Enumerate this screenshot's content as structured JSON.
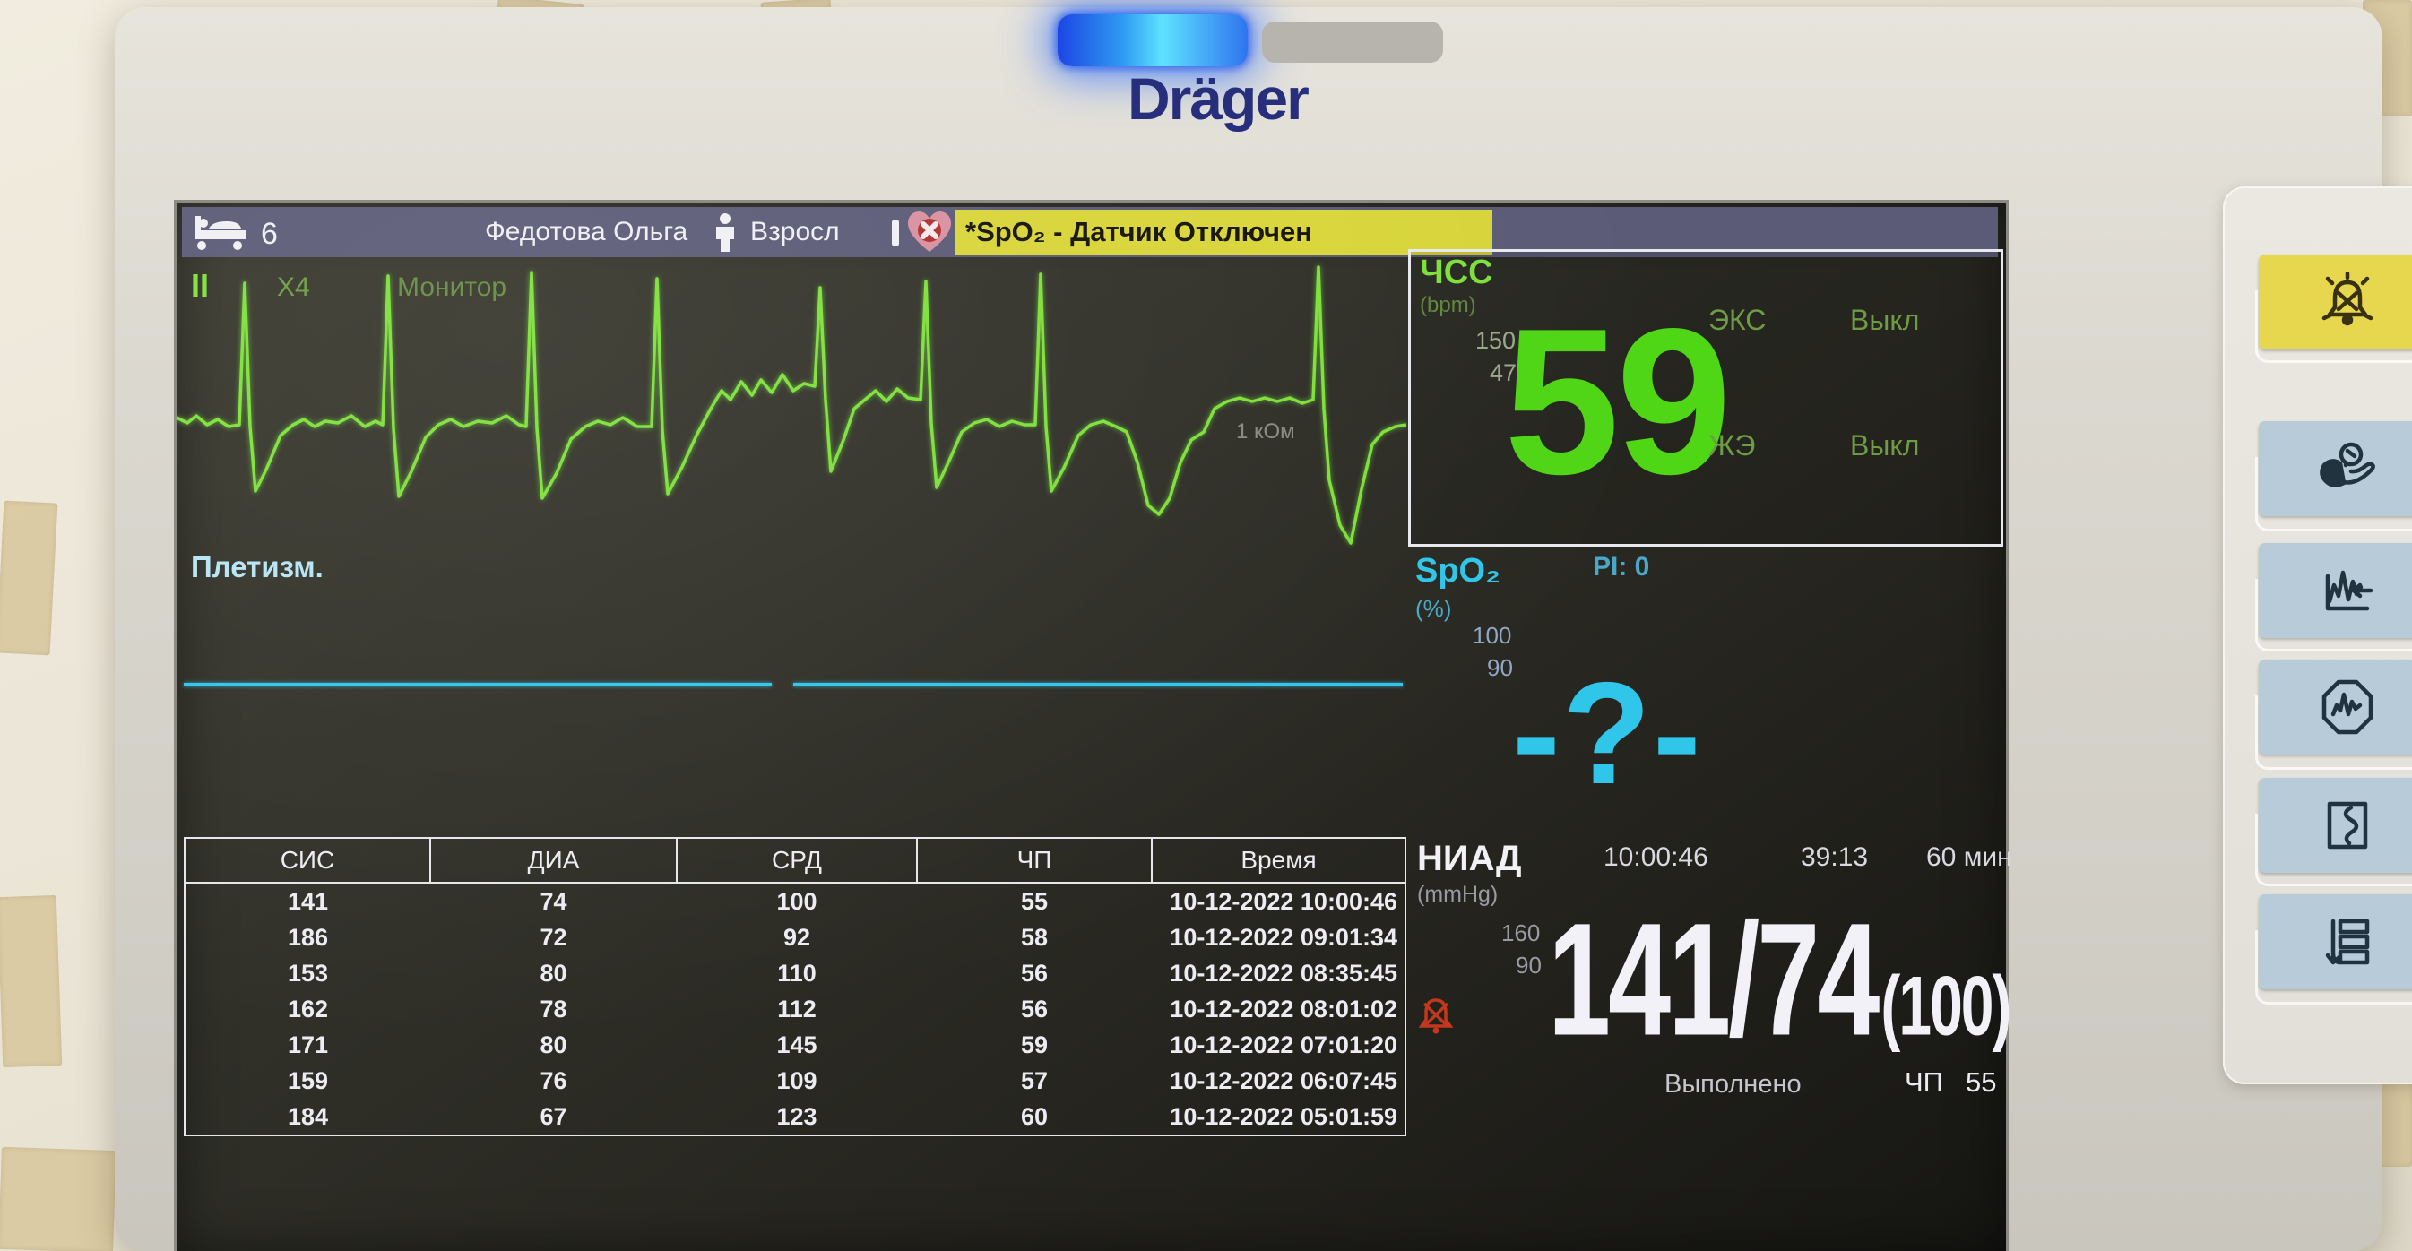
{
  "device": {
    "brand": "Dräger"
  },
  "topbar": {
    "bed_number": "6",
    "patient_name": "Федотова Ольга",
    "patient_type": "Взросл",
    "alarm_message": "*SpO₂ - Датчик Отключен"
  },
  "ecg": {
    "lead": "II",
    "gain": "X4",
    "filter_mode": "Монитор",
    "annotation": "1 кОм"
  },
  "hr": {
    "label": "ЧСС",
    "unit": "(bpm)",
    "limit_high": "150",
    "limit_low": "47",
    "value": "59",
    "pacer_label": "ЭКС",
    "pacer_value": "Выкл",
    "pvc_label": "ЖЭ",
    "pvc_value": "Выкл"
  },
  "spo2": {
    "label": "SpO₂",
    "unit": "(%)",
    "pi_label": "PI: 0",
    "limit_high": "100",
    "limit_low": "90",
    "value": "-?-",
    "pleth_label": "Плетизм."
  },
  "nibp_table": {
    "headers": [
      "СИС",
      "ДИА",
      "СРД",
      "ЧП",
      "Время"
    ],
    "rows": [
      [
        "141",
        "74",
        "100",
        "55",
        "10-12-2022 10:00:46"
      ],
      [
        "186",
        "72",
        "92",
        "58",
        "10-12-2022 09:01:34"
      ],
      [
        "153",
        "80",
        "110",
        "56",
        "10-12-2022 08:35:45"
      ],
      [
        "162",
        "78",
        "112",
        "56",
        "10-12-2022 08:01:02"
      ],
      [
        "171",
        "80",
        "145",
        "59",
        "10-12-2022 07:01:20"
      ],
      [
        "159",
        "76",
        "109",
        "57",
        "10-12-2022 06:07:45"
      ],
      [
        "184",
        "67",
        "123",
        "60",
        "10-12-2022 05:01:59"
      ]
    ]
  },
  "nibp": {
    "label": "НИАД",
    "unit": "(mmHg)",
    "last_time": "10:00:46",
    "countdown": "39:13",
    "interval": "60 мин",
    "limit_high": "160",
    "limit_low": "90",
    "sys_dia": "141/74",
    "mean": "(100)",
    "status": "Выполнено",
    "pulse_label": "ЧП",
    "pulse_value": "55"
  },
  "side_panel": {
    "buttons": [
      {
        "icon": "alarm-silence-bell-icon"
      },
      {
        "icon": "nibp-start-cuff-icon"
      },
      {
        "icon": "freeze-waveform-icon"
      },
      {
        "icon": "stop-octagon-waveform-icon"
      },
      {
        "icon": "recorder-squiggle-icon"
      },
      {
        "icon": "main-menu-list-icon"
      }
    ]
  },
  "colors": {
    "green_bright": "#7de03a",
    "green_value": "#4fd615",
    "green_dim": "#6e9c44",
    "cyan": "#2fc6e9",
    "cyan_dim": "#49a8c8",
    "gray_text": "#9a9aa4",
    "yellow_alert": "#d8d53a",
    "topbar": "#5b5b78",
    "navy_logo": "#272f7c",
    "btn_blue": "#b7ccd8",
    "btn_yellow": "#e6d74f",
    "red_alarm": "#c4371d"
  }
}
